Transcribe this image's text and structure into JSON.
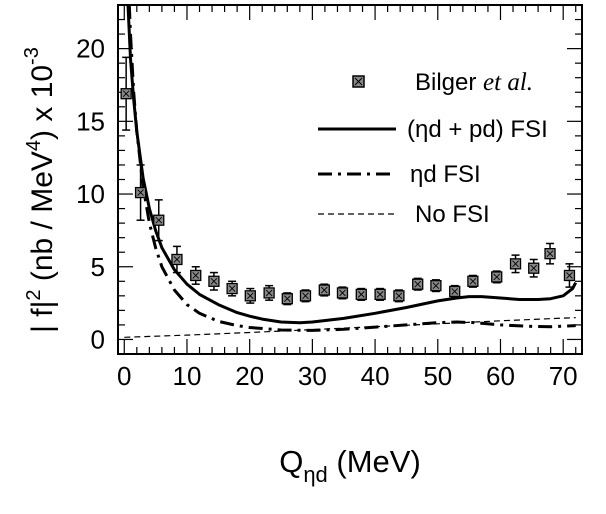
{
  "chart_data": {
    "type": "scatter",
    "title": "",
    "xlabel": {
      "main": "Q",
      "sub": "ηd",
      "unit": " (MeV)"
    },
    "ylabel": {
      "a": "| f|",
      "sup1": "2",
      "b": " (nb / MeV",
      "sup2": "4",
      "c": ") x 10",
      "sup3": "-3"
    },
    "xlim": [
      -1,
      73
    ],
    "ylim": [
      -1,
      23
    ],
    "xticks": [
      "0",
      "10",
      "20",
      "30",
      "40",
      "50",
      "60",
      "70"
    ],
    "yticks": [
      "0",
      "5",
      "10",
      "15",
      "20"
    ],
    "legend_position": "top-right",
    "legend": {
      "data_name": "Bilger ",
      "data_name_italic": "et al.",
      "full_fsi": "(ηd + pd) FSI",
      "eta_d_fsi": "ηd FSI",
      "no_fsi": "No FSI"
    },
    "data_points": [
      {
        "x": 0.3,
        "y": 16.9,
        "err": 2.5
      },
      {
        "x": 2.6,
        "y": 10.1,
        "err": 1.9
      },
      {
        "x": 5.5,
        "y": 8.2,
        "err": 1.4
      },
      {
        "x": 8.4,
        "y": 5.5,
        "err": 0.9
      },
      {
        "x": 11.4,
        "y": 4.4,
        "err": 0.6
      },
      {
        "x": 14.3,
        "y": 4.0,
        "err": 0.6
      },
      {
        "x": 17.2,
        "y": 3.5,
        "err": 0.5
      },
      {
        "x": 20.1,
        "y": 3.0,
        "err": 0.5
      },
      {
        "x": 23.1,
        "y": 3.2,
        "err": 0.5
      },
      {
        "x": 26.0,
        "y": 2.8,
        "err": 0.4
      },
      {
        "x": 28.9,
        "y": 3.0,
        "err": 0.4
      },
      {
        "x": 31.9,
        "y": 3.4,
        "err": 0.4
      },
      {
        "x": 34.8,
        "y": 3.2,
        "err": 0.4
      },
      {
        "x": 37.8,
        "y": 3.1,
        "err": 0.4
      },
      {
        "x": 40.8,
        "y": 3.1,
        "err": 0.4
      },
      {
        "x": 43.8,
        "y": 3.0,
        "err": 0.4
      },
      {
        "x": 46.8,
        "y": 3.8,
        "err": 0.4
      },
      {
        "x": 49.7,
        "y": 3.7,
        "err": 0.4
      },
      {
        "x": 52.7,
        "y": 3.3,
        "err": 0.4
      },
      {
        "x": 55.6,
        "y": 4.0,
        "err": 0.4
      },
      {
        "x": 59.4,
        "y": 4.3,
        "err": 0.4
      },
      {
        "x": 62.4,
        "y": 5.2,
        "err": 0.6
      },
      {
        "x": 65.3,
        "y": 4.9,
        "err": 0.6
      },
      {
        "x": 67.9,
        "y": 5.9,
        "err": 0.7
      },
      {
        "x": 71.0,
        "y": 4.4,
        "err": 0.8
      }
    ],
    "curves": [
      {
        "name": "(ηd + pd) FSI",
        "style": "solid",
        "points": [
          [
            0.6,
            23
          ],
          [
            1,
            19.3
          ],
          [
            1.5,
            16.5
          ],
          [
            2,
            14.3
          ],
          [
            3,
            11.1
          ],
          [
            4,
            9.0
          ],
          [
            5,
            7.5
          ],
          [
            6,
            6.3
          ],
          [
            8,
            4.8
          ],
          [
            10,
            3.8
          ],
          [
            12,
            3.1
          ],
          [
            15,
            2.4
          ],
          [
            18,
            1.85
          ],
          [
            20,
            1.6
          ],
          [
            22,
            1.4
          ],
          [
            25,
            1.2
          ],
          [
            28,
            1.15
          ],
          [
            30,
            1.2
          ],
          [
            35,
            1.45
          ],
          [
            40,
            1.8
          ],
          [
            45,
            2.2
          ],
          [
            50,
            2.65
          ],
          [
            53,
            2.85
          ],
          [
            55,
            2.95
          ],
          [
            57,
            2.95
          ],
          [
            60,
            2.85
          ],
          [
            63,
            2.75
          ],
          [
            66,
            2.75
          ],
          [
            68,
            2.8
          ],
          [
            70,
            3.0
          ],
          [
            71.5,
            3.5
          ],
          [
            72,
            3.9
          ]
        ]
      },
      {
        "name": "ηd FSI",
        "style": "dashdot",
        "points": [
          [
            0.8,
            23
          ],
          [
            1,
            21
          ],
          [
            1.5,
            17
          ],
          [
            2,
            14.3
          ],
          [
            3,
            10.5
          ],
          [
            4,
            8.0
          ],
          [
            5,
            6.3
          ],
          [
            6,
            5.0
          ],
          [
            8,
            3.4
          ],
          [
            10,
            2.4
          ],
          [
            12,
            1.8
          ],
          [
            15,
            1.25
          ],
          [
            18,
            0.95
          ],
          [
            20,
            0.82
          ],
          [
            25,
            0.65
          ],
          [
            30,
            0.62
          ],
          [
            35,
            0.7
          ],
          [
            40,
            0.85
          ],
          [
            45,
            1.0
          ],
          [
            50,
            1.15
          ],
          [
            53,
            1.2
          ],
          [
            56,
            1.15
          ],
          [
            60,
            1.0
          ],
          [
            65,
            0.9
          ],
          [
            68,
            0.88
          ],
          [
            72,
            0.95
          ]
        ]
      },
      {
        "name": "No FSI",
        "style": "dashed",
        "points": [
          [
            0,
            0.15
          ],
          [
            10,
            0.3
          ],
          [
            20,
            0.48
          ],
          [
            30,
            0.68
          ],
          [
            40,
            0.88
          ],
          [
            50,
            1.08
          ],
          [
            60,
            1.28
          ],
          [
            72,
            1.5
          ]
        ]
      }
    ]
  }
}
